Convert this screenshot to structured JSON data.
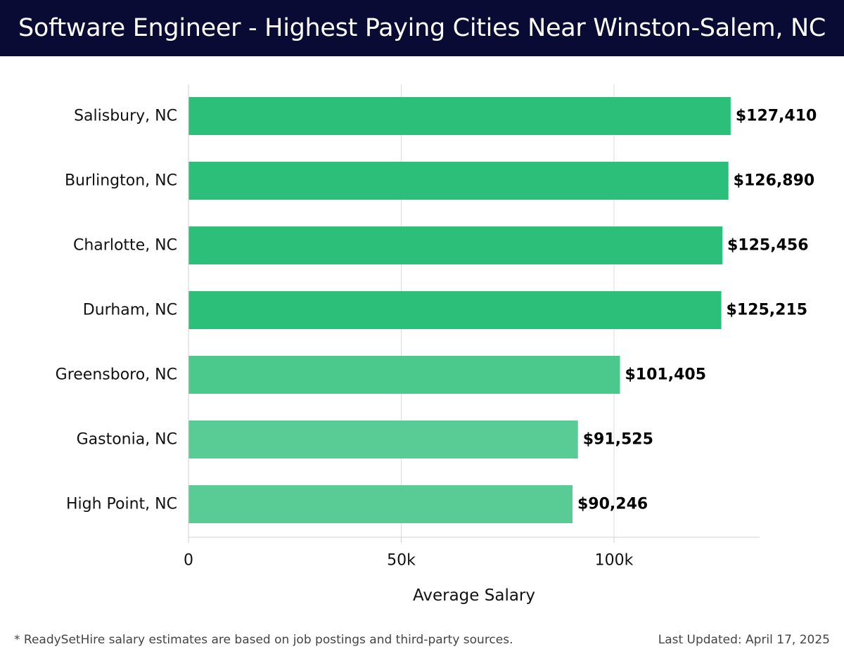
{
  "header": {
    "title": "Software Engineer - Highest Paying Cities Near Winston-Salem, NC",
    "background": "#0a0b34"
  },
  "chart_data": {
    "type": "bar",
    "orientation": "horizontal",
    "categories": [
      "Salisbury, NC",
      "Burlington, NC",
      "Charlotte, NC",
      "Durham, NC",
      "Greensboro, NC",
      "Gastonia, NC",
      "High Point, NC"
    ],
    "values": [
      127410,
      126890,
      125456,
      125215,
      101405,
      91525,
      90246
    ],
    "value_labels": [
      "$127,410",
      "$126,890",
      "$125,456",
      "$125,215",
      "$101,405",
      "$91,525",
      "$90,246"
    ],
    "bar_colors": [
      "#2cbf79",
      "#2cbf79",
      "#2cbf79",
      "#2cbf79",
      "#4bc88b",
      "#58cc94",
      "#58cc94"
    ],
    "xlabel": "Average Salary",
    "ylabel": "",
    "xlim": [
      0,
      134000
    ],
    "x_ticks": [
      0,
      50000,
      100000
    ],
    "x_tick_labels": [
      "0",
      "50k",
      "100k"
    ],
    "grid": "vertical"
  },
  "footer": {
    "note": "* ReadySetHire salary estimates are based on job postings and third-party sources.",
    "updated": "Last Updated: April 17, 2025"
  }
}
